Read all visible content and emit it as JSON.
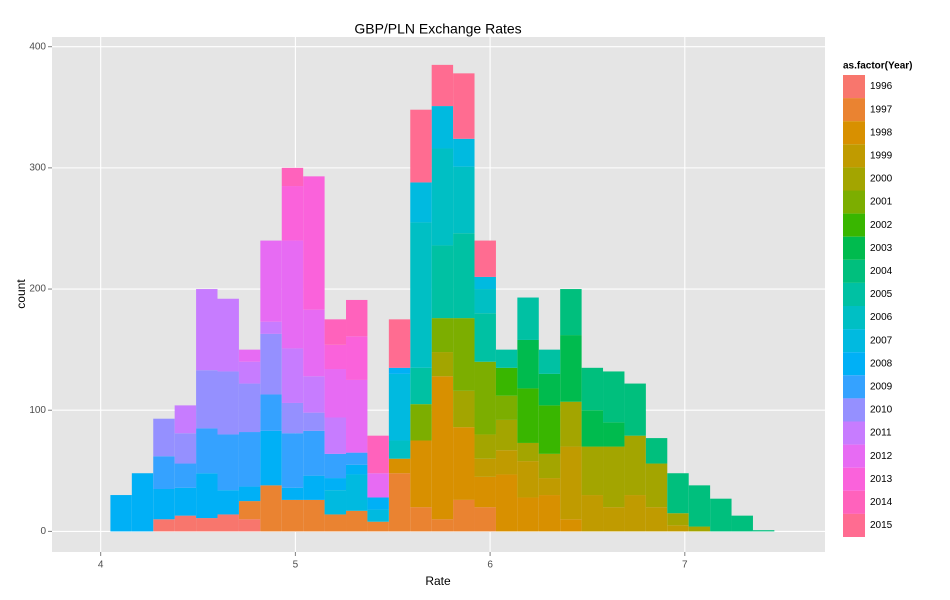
{
  "chart_data": {
    "type": "histogram",
    "title": "GBP/PLN Exchange Rates",
    "x_label": "Rate",
    "y_label": "count",
    "legend_title": "as.factor(Year)",
    "legend_position": "right",
    "stacked": true,
    "grid": true,
    "xlim": [
      3.75,
      7.72
    ],
    "ylim": [
      -17,
      408
    ],
    "xticks": [
      4,
      5,
      6,
      7
    ],
    "yticks": [
      0,
      100,
      200,
      300,
      400
    ],
    "bins": [
      4.05,
      4.16,
      4.27,
      4.38,
      4.49,
      4.6,
      4.71,
      4.82,
      4.93,
      5.04,
      5.15,
      5.26,
      5.37,
      5.48,
      5.59,
      5.7,
      5.81,
      5.92,
      6.03,
      6.14,
      6.25,
      6.36,
      6.47,
      6.58,
      6.69,
      6.8,
      6.91,
      7.02,
      7.13,
      7.24,
      7.35,
      7.46
    ],
    "series": [
      {
        "name": "1996",
        "color": "#F8766D",
        "values": [
          0,
          0,
          10,
          13,
          11,
          14,
          10,
          0,
          0,
          0,
          0,
          0,
          0,
          0,
          0,
          0,
          0,
          0,
          0,
          0,
          0,
          0,
          0,
          0,
          0,
          0,
          0,
          0,
          0,
          0,
          0
        ]
      },
      {
        "name": "1997",
        "color": "#EA8331",
        "values": [
          0,
          0,
          0,
          0,
          0,
          0,
          15,
          38,
          26,
          26,
          14,
          17,
          8,
          48,
          20,
          10,
          26,
          20,
          0,
          0,
          0,
          0,
          0,
          0,
          0,
          0,
          0,
          0,
          0,
          0,
          0
        ]
      },
      {
        "name": "1998",
        "color": "#D89000",
        "values": [
          0,
          0,
          0,
          0,
          0,
          0,
          0,
          0,
          0,
          0,
          0,
          0,
          0,
          12,
          55,
          118,
          60,
          25,
          47,
          28,
          30,
          10,
          0,
          0,
          0,
          0,
          0,
          0,
          0,
          0,
          0
        ]
      },
      {
        "name": "1999",
        "color": "#C09B00",
        "values": [
          0,
          0,
          0,
          0,
          0,
          0,
          0,
          0,
          0,
          0,
          0,
          0,
          0,
          0,
          0,
          0,
          0,
          15,
          20,
          30,
          14,
          60,
          30,
          20,
          30,
          20,
          5,
          0,
          0,
          0,
          0
        ]
      },
      {
        "name": "2000",
        "color": "#A3A500",
        "values": [
          0,
          0,
          0,
          0,
          0,
          0,
          0,
          0,
          0,
          0,
          0,
          0,
          0,
          0,
          0,
          20,
          30,
          20,
          25,
          15,
          20,
          37,
          40,
          50,
          49,
          36,
          10,
          4,
          0,
          0,
          0
        ]
      },
      {
        "name": "2001",
        "color": "#7CAE00",
        "values": [
          0,
          0,
          0,
          0,
          0,
          0,
          0,
          0,
          0,
          0,
          0,
          0,
          0,
          0,
          30,
          28,
          60,
          60,
          20,
          0,
          0,
          0,
          0,
          0,
          0,
          0,
          0,
          0,
          0,
          0,
          0
        ]
      },
      {
        "name": "2002",
        "color": "#39B600",
        "values": [
          0,
          0,
          0,
          0,
          0,
          0,
          0,
          0,
          0,
          0,
          0,
          0,
          0,
          0,
          0,
          0,
          0,
          0,
          23,
          45,
          40,
          0,
          0,
          0,
          0,
          0,
          0,
          0,
          0,
          0,
          0
        ]
      },
      {
        "name": "2003",
        "color": "#00BB4E",
        "values": [
          0,
          0,
          0,
          0,
          0,
          0,
          0,
          0,
          0,
          0,
          0,
          0,
          0,
          0,
          0,
          0,
          0,
          0,
          0,
          40,
          26,
          55,
          30,
          20,
          0,
          0,
          0,
          0,
          0,
          0,
          0
        ]
      },
      {
        "name": "2004",
        "color": "#00BF7D",
        "values": [
          0,
          0,
          0,
          0,
          0,
          0,
          0,
          0,
          0,
          0,
          0,
          0,
          0,
          0,
          0,
          0,
          0,
          0,
          0,
          0,
          0,
          38,
          35,
          42,
          43,
          21,
          33,
          34,
          27,
          13,
          1
        ]
      },
      {
        "name": "2005",
        "color": "#00C1A3",
        "values": [
          0,
          0,
          0,
          0,
          0,
          0,
          0,
          0,
          0,
          0,
          0,
          0,
          0,
          0,
          30,
          60,
          70,
          40,
          15,
          35,
          20,
          0,
          0,
          0,
          0,
          0,
          0,
          0,
          0,
          0,
          0
        ]
      },
      {
        "name": "2006",
        "color": "#00BFC4",
        "values": [
          0,
          0,
          0,
          0,
          0,
          0,
          0,
          0,
          0,
          0,
          0,
          0,
          0,
          15,
          120,
          80,
          55,
          20,
          0,
          0,
          0,
          0,
          0,
          0,
          0,
          0,
          0,
          0,
          0,
          0,
          0
        ]
      },
      {
        "name": "2007",
        "color": "#00BAE0",
        "values": [
          0,
          0,
          0,
          0,
          0,
          0,
          0,
          0,
          0,
          0,
          20,
          30,
          10,
          55,
          33,
          35,
          23,
          10,
          0,
          0,
          0,
          0,
          0,
          0,
          0,
          0,
          0,
          0,
          0,
          0,
          0
        ]
      },
      {
        "name": "2008",
        "color": "#00B0F6",
        "values": [
          30,
          48,
          25,
          23,
          37,
          20,
          12,
          45,
          10,
          20,
          10,
          8,
          10,
          5,
          0,
          0,
          0,
          0,
          0,
          0,
          0,
          0,
          0,
          0,
          0,
          0,
          0,
          0,
          0,
          0,
          0
        ]
      },
      {
        "name": "2009",
        "color": "#35A2FF",
        "values": [
          0,
          0,
          27,
          20,
          37,
          46,
          45,
          30,
          45,
          37,
          20,
          10,
          0,
          0,
          0,
          0,
          0,
          0,
          0,
          0,
          0,
          0,
          0,
          0,
          0,
          0,
          0,
          0,
          0,
          0,
          0
        ]
      },
      {
        "name": "2010",
        "color": "#9590FF",
        "values": [
          0,
          0,
          31,
          25,
          48,
          52,
          40,
          50,
          25,
          15,
          0,
          0,
          0,
          0,
          0,
          0,
          0,
          0,
          0,
          0,
          0,
          0,
          0,
          0,
          0,
          0,
          0,
          0,
          0,
          0,
          0
        ]
      },
      {
        "name": "2011",
        "color": "#C77CFF",
        "values": [
          0,
          0,
          0,
          23,
          67,
          60,
          18,
          10,
          45,
          30,
          30,
          0,
          0,
          0,
          0,
          0,
          0,
          0,
          0,
          0,
          0,
          0,
          0,
          0,
          0,
          0,
          0,
          0,
          0,
          0,
          0
        ]
      },
      {
        "name": "2012",
        "color": "#E76BF3",
        "values": [
          0,
          0,
          0,
          0,
          0,
          0,
          10,
          67,
          89,
          55,
          40,
          60,
          20,
          0,
          0,
          0,
          0,
          0,
          0,
          0,
          0,
          0,
          0,
          0,
          0,
          0,
          0,
          0,
          0,
          0,
          0
        ]
      },
      {
        "name": "2013",
        "color": "#FA62DB",
        "values": [
          0,
          0,
          0,
          0,
          0,
          0,
          0,
          0,
          45,
          110,
          20,
          36,
          0,
          0,
          0,
          0,
          0,
          0,
          0,
          0,
          0,
          0,
          0,
          0,
          0,
          0,
          0,
          0,
          0,
          0,
          0
        ]
      },
      {
        "name": "2014",
        "color": "#FF62BC",
        "values": [
          0,
          0,
          0,
          0,
          0,
          0,
          0,
          0,
          15,
          0,
          21,
          30,
          31,
          0,
          0,
          0,
          0,
          0,
          0,
          0,
          0,
          0,
          0,
          0,
          0,
          0,
          0,
          0,
          0,
          0,
          0
        ]
      },
      {
        "name": "2015",
        "color": "#FF6C91",
        "values": [
          0,
          0,
          0,
          0,
          0,
          0,
          0,
          0,
          0,
          0,
          0,
          0,
          0,
          40,
          60,
          34,
          54,
          30,
          0,
          0,
          0,
          0,
          0,
          0,
          0,
          0,
          0,
          0,
          0,
          0,
          0
        ]
      }
    ]
  }
}
